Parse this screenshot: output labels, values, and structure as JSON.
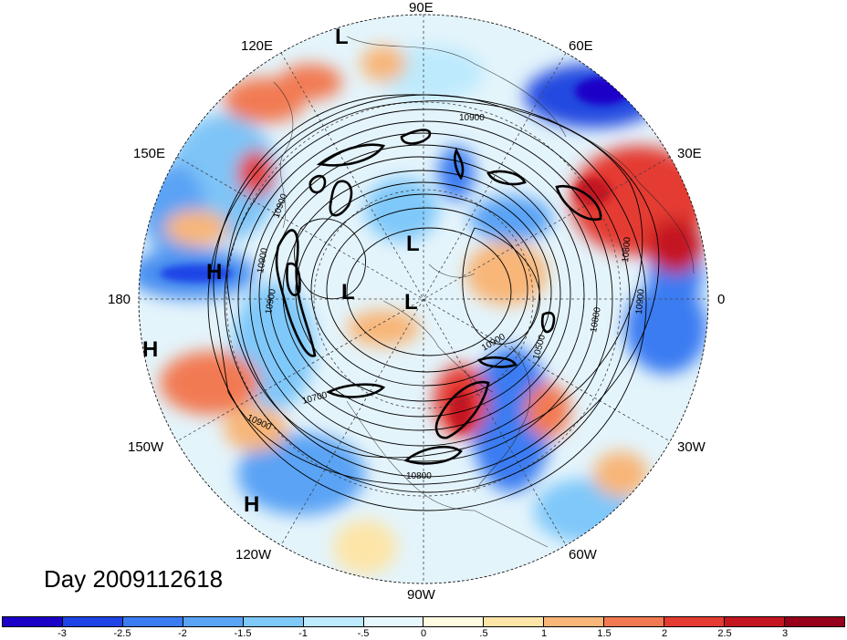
{
  "map": {
    "day_label": "Day 2009112618",
    "lon_labels": {
      "e90": "90E",
      "e120": "120E",
      "e60": "60E",
      "e150": "150E",
      "e30": "30E",
      "w180": "180",
      "zero": "0",
      "w150": "150W",
      "w30": "30W",
      "w120": "120W",
      "w60": "60W",
      "w90": "90W"
    },
    "pressure_centers": {
      "L1": "L",
      "L2": "L",
      "L3": "L",
      "L4": "L",
      "H1": "H",
      "H2": "H",
      "H3": "H"
    },
    "contour_labels": [
      "10900",
      "10900",
      "10900",
      "10900",
      "10800",
      "10800",
      "10700",
      "10500",
      "10900",
      "10800",
      "10900",
      "10900"
    ],
    "colorbar": {
      "ticks": [
        "-3",
        "-2.5",
        "-2",
        "-1.5",
        "-1",
        "-.5",
        "0",
        ".5",
        "1",
        "1.5",
        "2",
        "2.5",
        "3"
      ],
      "colors": [
        "#1b00c8",
        "#1f44e6",
        "#3b7cf2",
        "#5aa3f5",
        "#7fc8fa",
        "#bdeafd",
        "#e8f8ff",
        "#fffbe0",
        "#fde5a8",
        "#f8b678",
        "#f27a52",
        "#e43b32",
        "#c41620",
        "#96001a"
      ]
    }
  }
}
